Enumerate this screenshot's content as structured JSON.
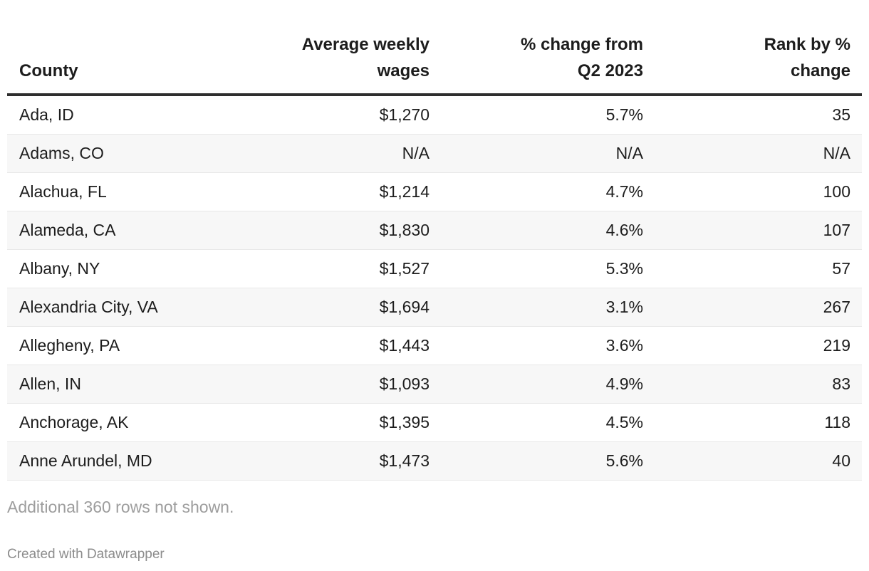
{
  "chart_data": {
    "type": "table",
    "columns": [
      {
        "label": "County",
        "align": "left"
      },
      {
        "label": "Average weekly\nwages",
        "align": "right"
      },
      {
        "label": "% change from\nQ2 2023",
        "align": "right"
      },
      {
        "label": "Rank by %\nchange",
        "align": "right"
      }
    ],
    "rows": [
      [
        "Ada, ID",
        "$1,270",
        "5.7%",
        "35"
      ],
      [
        "Adams, CO",
        "N/A",
        "N/A",
        "N/A"
      ],
      [
        "Alachua, FL",
        "$1,214",
        "4.7%",
        "100"
      ],
      [
        "Alameda, CA",
        "$1,830",
        "4.6%",
        "107"
      ],
      [
        "Albany, NY",
        "$1,527",
        "5.3%",
        "57"
      ],
      [
        "Alexandria City, VA",
        "$1,694",
        "3.1%",
        "267"
      ],
      [
        "Allegheny, PA",
        "$1,443",
        "3.6%",
        "219"
      ],
      [
        "Allen, IN",
        "$1,093",
        "4.9%",
        "83"
      ],
      [
        "Anchorage, AK",
        "$1,395",
        "4.5%",
        "118"
      ],
      [
        "Anne Arundel, MD",
        "$1,473",
        "5.6%",
        "40"
      ]
    ],
    "layout_hints": {
      "zebra_striping": "even rows shaded",
      "header_rule": "thick dark line below header",
      "numeric_columns_right_aligned": true
    }
  },
  "footer": {
    "note": "Additional 360 rows not shown.",
    "attribution": "Created with Datawrapper"
  },
  "colors": {
    "text": "#1d1d1d",
    "stripe": "#f7f7f7",
    "header_border": "#2e2e2e",
    "row_border": "#e8e8e8",
    "note_text": "#9d9d9d",
    "attribution_text": "#8c8c8c"
  }
}
